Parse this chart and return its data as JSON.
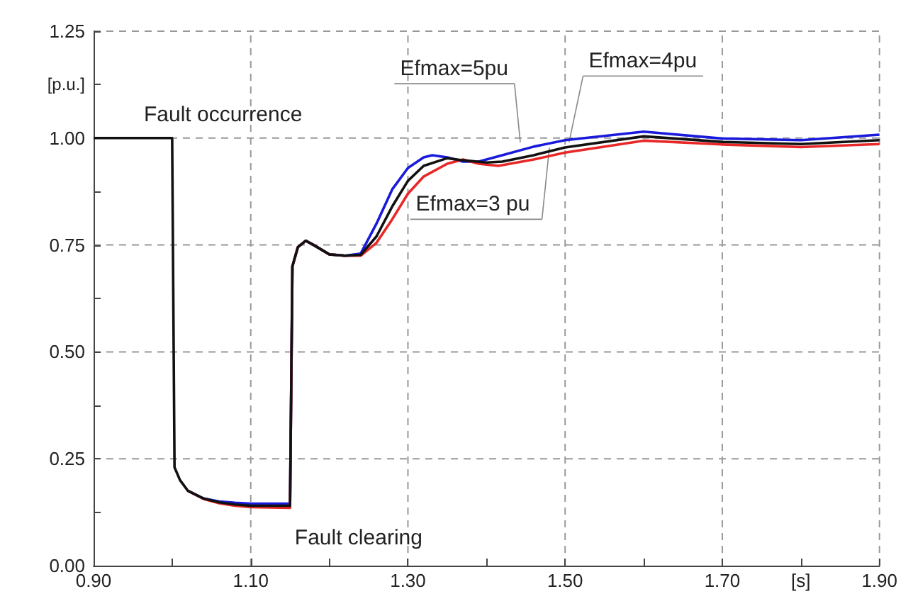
{
  "chart_data": {
    "type": "line",
    "xlabel": "[s]",
    "ylabel": "[p.u.]",
    "annotations": [
      "Fault occurrence",
      "Fault clearing"
    ],
    "xlim": [
      0.9,
      1.9
    ],
    "xticks": [
      {
        "value": 0.9,
        "label": "0.90"
      },
      {
        "value": 1.0,
        "label": null
      },
      {
        "value": 1.1,
        "label": "1.10"
      },
      {
        "value": 1.2,
        "label": null
      },
      {
        "value": 1.3,
        "label": "1.30"
      },
      {
        "value": 1.4,
        "label": null
      },
      {
        "value": 1.5,
        "label": "1.50"
      },
      {
        "value": 1.6,
        "label": null
      },
      {
        "value": 1.7,
        "label": "1.70"
      },
      {
        "value": 1.8,
        "label": null
      },
      {
        "value": 1.9,
        "label": "1.90"
      }
    ],
    "ylim": [
      0,
      1.25
    ],
    "yticks": [
      {
        "value": 0,
        "label": "0.00"
      },
      {
        "value": 0.125,
        "label": null
      },
      {
        "value": 0.25,
        "label": "0.25"
      },
      {
        "value": 0.375,
        "label": null
      },
      {
        "value": 0.5,
        "label": "0.50"
      },
      {
        "value": 0.625,
        "label": null
      },
      {
        "value": 0.75,
        "label": "0.75"
      },
      {
        "value": 0.875,
        "label": null
      },
      {
        "value": 1.0,
        "label": "1.00"
      },
      {
        "value": 1.125,
        "label": null
      },
      {
        "value": 1.25,
        "label": "1.25"
      }
    ],
    "grid": true,
    "legend": false,
    "marker": "none",
    "line_style": "solid",
    "series": [
      {
        "name": "Efmax=5pu",
        "color": "#1a1add",
        "x": [
          1.02,
          1.04,
          1.06,
          1.08,
          1.1,
          1.15,
          1.153,
          1.16,
          1.17,
          1.18,
          1.2,
          1.22,
          1.24,
          1.26,
          1.28,
          1.3,
          1.32,
          1.331,
          1.35,
          1.37,
          1.39,
          1.42,
          1.46,
          1.5,
          1.6,
          1.7,
          1.8,
          1.9
        ],
        "values": [
          0.175,
          0.157,
          0.15,
          0.147,
          0.145,
          0.145,
          0.7,
          0.745,
          0.76,
          0.75,
          0.728,
          0.725,
          0.73,
          0.8,
          0.88,
          0.93,
          0.955,
          0.96,
          0.955,
          0.945,
          0.945,
          0.96,
          0.98,
          0.995,
          1.015,
          0.999,
          0.995,
          1.008
        ]
      },
      {
        "name": "Efmax=3 pu",
        "color": "#e82828",
        "x": [
          1.02,
          1.04,
          1.06,
          1.08,
          1.1,
          1.15,
          1.153,
          1.16,
          1.17,
          1.18,
          1.2,
          1.22,
          1.24,
          1.26,
          1.28,
          1.3,
          1.32,
          1.35,
          1.37,
          1.39,
          1.415,
          1.46,
          1.5,
          1.6,
          1.7,
          1.8,
          1.9
        ],
        "values": [
          0.175,
          0.156,
          0.146,
          0.14,
          0.137,
          0.135,
          0.7,
          0.745,
          0.76,
          0.75,
          0.728,
          0.725,
          0.725,
          0.755,
          0.81,
          0.87,
          0.91,
          0.94,
          0.95,
          0.94,
          0.935,
          0.95,
          0.966,
          0.994,
          0.985,
          0.979,
          0.986
        ]
      },
      {
        "name": "Efmax=4pu",
        "color": "#111111",
        "x": [
          0.9,
          1.0,
          1.003,
          1.01,
          1.02,
          1.04,
          1.06,
          1.08,
          1.1,
          1.15,
          1.153,
          1.16,
          1.17,
          1.18,
          1.2,
          1.22,
          1.24,
          1.26,
          1.28,
          1.3,
          1.32,
          1.35,
          1.37,
          1.4,
          1.42,
          1.46,
          1.5,
          1.6,
          1.7,
          1.8,
          1.9
        ],
        "values": [
          1.0,
          1.0,
          0.23,
          0.2,
          0.175,
          0.157,
          0.148,
          0.143,
          0.14,
          0.14,
          0.7,
          0.745,
          0.76,
          0.75,
          0.728,
          0.725,
          0.727,
          0.77,
          0.84,
          0.9,
          0.935,
          0.953,
          0.948,
          0.943,
          0.945,
          0.96,
          0.978,
          1.004,
          0.991,
          0.986,
          0.995
        ]
      }
    ]
  }
}
